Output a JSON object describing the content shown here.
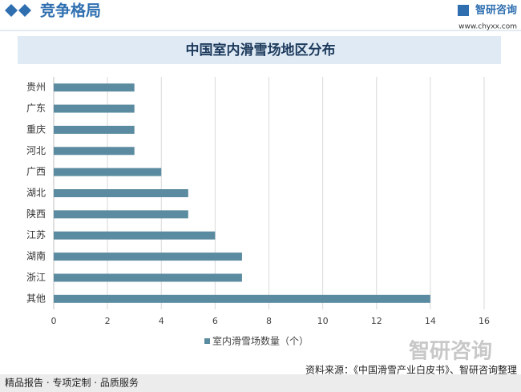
{
  "header": {
    "title": "竞争格局",
    "logo": "智研咨询",
    "url": "www.chyxx.com"
  },
  "chart_data": {
    "type": "hbar",
    "title": "中国室内滑雪场地区分布",
    "categories": [
      "贵州",
      "广东",
      "重庆",
      "河北",
      "广西",
      "湖北",
      "陕西",
      "江苏",
      "湖南",
      "浙江",
      "其他"
    ],
    "series": [
      {
        "name": "室内滑雪场数量（个）",
        "color": "#5b8ba0",
        "values": [
          3,
          3,
          3,
          3,
          4,
          5,
          5,
          6,
          7,
          7,
          14
        ]
      }
    ],
    "xlim": [
      0,
      16
    ],
    "xticks": [
      0,
      2,
      4,
      6,
      8,
      10,
      12,
      14,
      16
    ],
    "grid": true
  },
  "footer": {
    "slogan": "精品报告 · 专项定制 · 品质服务",
    "source": "资料来源：《中国滑雪产业白皮书》、智研咨询整理",
    "logo": "智研咨询"
  }
}
